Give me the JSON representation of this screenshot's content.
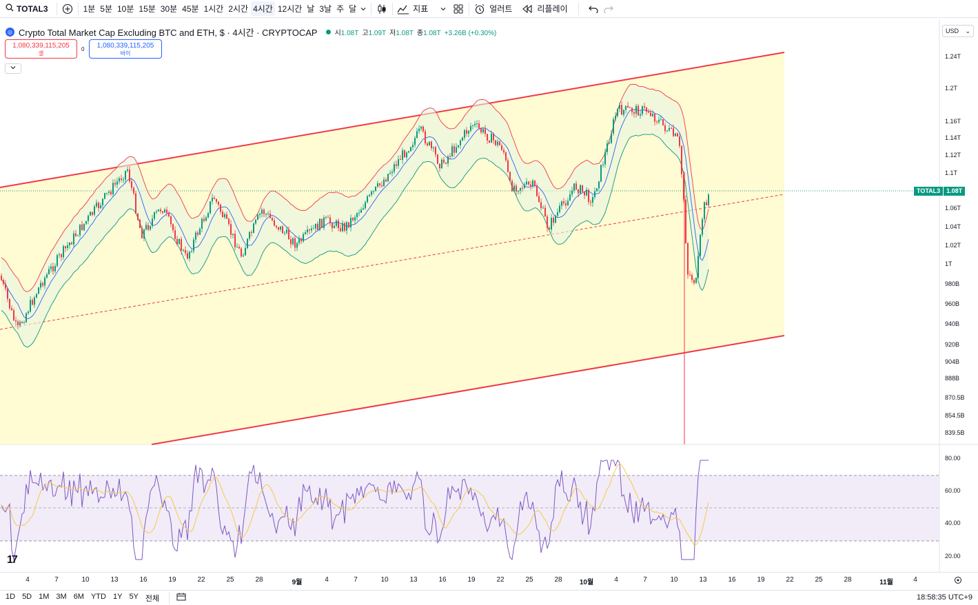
{
  "toolbar": {
    "symbol": "TOTAL3",
    "intervals": [
      "1분",
      "5분",
      "10분",
      "15분",
      "30분",
      "45분",
      "1시간",
      "2시간",
      "4시간",
      "12시간",
      "날",
      "3날",
      "주",
      "달"
    ],
    "active_interval": "4시간",
    "indicators_label": "지표",
    "alerts_label": "얼러트",
    "replay_label": "리플레이"
  },
  "legend": {
    "title": "Crypto Total Market Cap Excluding BTC and ETH, $ · 4시간 · CRYPTOCAP",
    "o_label": "시",
    "o_value": "1.08T",
    "h_label": "고",
    "h_value": "1.09T",
    "l_label": "저",
    "l_value": "1.08T",
    "c_label": "종",
    "c_value": "1.08T",
    "change": "+3.26B (+0.30%)"
  },
  "trade": {
    "sell_price": "1,080,339,115,205",
    "sell_label": "셀",
    "spread": "0",
    "buy_price": "1,080,339,115,205",
    "buy_label": "바이"
  },
  "currency": "USD",
  "price_axis": [
    "1.24T",
    "1.2T",
    "1.16T",
    "1.14T",
    "1.12T",
    "1.1T",
    "1.06T",
    "1.04T",
    "1.02T",
    "1T",
    "980B",
    "960B",
    "940B",
    "920B",
    "904B",
    "888B",
    "870.5B",
    "854.5B",
    "839.5B"
  ],
  "current_price": {
    "symbol": "TOTAL3",
    "value": "1.08T"
  },
  "rsi_axis": [
    "80.00",
    "60.00",
    "40.00",
    "20.00"
  ],
  "time_axis": [
    {
      "label": "4",
      "bold": false
    },
    {
      "label": "7",
      "bold": false
    },
    {
      "label": "10",
      "bold": false
    },
    {
      "label": "13",
      "bold": false
    },
    {
      "label": "16",
      "bold": false
    },
    {
      "label": "19",
      "bold": false
    },
    {
      "label": "22",
      "bold": false
    },
    {
      "label": "25",
      "bold": false
    },
    {
      "label": "28",
      "bold": false
    },
    {
      "label": "9월",
      "bold": true
    },
    {
      "label": "4",
      "bold": false
    },
    {
      "label": "7",
      "bold": false
    },
    {
      "label": "10",
      "bold": false
    },
    {
      "label": "13",
      "bold": false
    },
    {
      "label": "16",
      "bold": false
    },
    {
      "label": "19",
      "bold": false
    },
    {
      "label": "22",
      "bold": false
    },
    {
      "label": "25",
      "bold": false
    },
    {
      "label": "28",
      "bold": false
    },
    {
      "label": "10월",
      "bold": true
    },
    {
      "label": "4",
      "bold": false
    },
    {
      "label": "7",
      "bold": false
    },
    {
      "label": "10",
      "bold": false
    },
    {
      "label": "13",
      "bold": false
    },
    {
      "label": "16",
      "bold": false
    },
    {
      "label": "19",
      "bold": false
    },
    {
      "label": "22",
      "bold": false
    },
    {
      "label": "25",
      "bold": false
    },
    {
      "label": "28",
      "bold": false
    },
    {
      "label": "11월",
      "bold": true
    },
    {
      "label": "4",
      "bold": false
    }
  ],
  "ranges": [
    "1D",
    "5D",
    "1M",
    "3M",
    "6M",
    "YTD",
    "1Y",
    "5Y",
    "전체"
  ],
  "clock": "18:58:35 UTC+9",
  "colors": {
    "up": "#089981",
    "down": "#f23645",
    "channel_fill": "#fff9c4",
    "channel_line": "#f23645",
    "bb_upper": "#f23645",
    "bb_lower": "#089981",
    "basis": "#2962ff",
    "rsi": "#7e57c2",
    "rsi_ma": "#f7c948",
    "rsi_band": "#ede7f6"
  }
}
